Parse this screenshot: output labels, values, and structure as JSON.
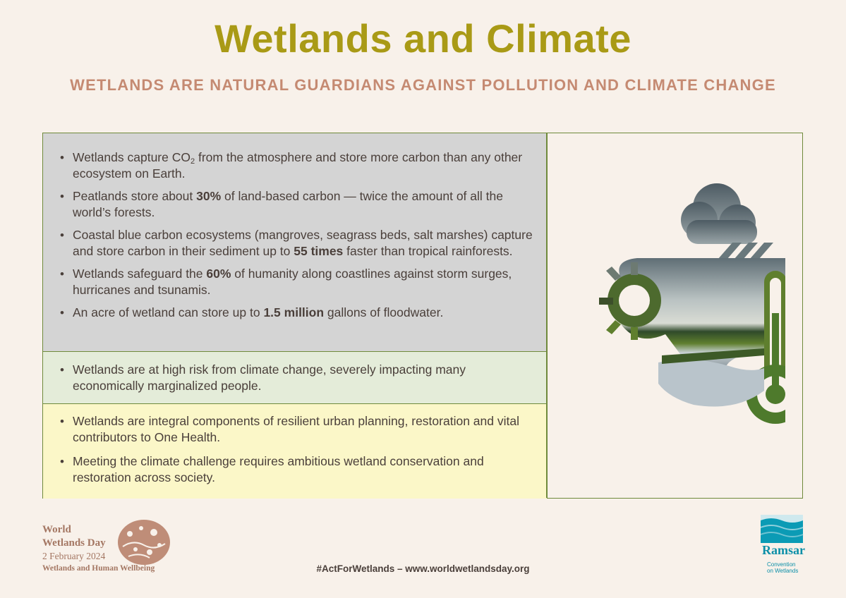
{
  "header": {
    "title": "Wetlands and Climate",
    "subtitle": "WETLANDS ARE NATURAL GUARDIANS AGAINST POLLUTION AND CLIMATE CHANGE"
  },
  "sections": {
    "carbon": [
      {
        "pre": "Wetlands capture CO",
        "sub": "2",
        "post": " from the atmosphere and store more carbon than any other ecosystem on Earth."
      },
      {
        "pre": "Peatlands store about ",
        "bold": "30%",
        "post": " of land-based carbon — twice the amount of all the world’s forests."
      },
      {
        "pre": "Coastal blue carbon ecosystems (mangroves, seagrass beds, salt marshes) capture and store carbon in their sediment up to ",
        "bold": "55 times",
        "post": " faster than tropical rainforests."
      },
      {
        "pre": "Wetlands safeguard the ",
        "bold": "60%",
        "post": " of humanity along coastlines against storm surges, hurricanes and tsunamis."
      },
      {
        "pre": "An acre of wetland can store up to ",
        "bold": "1.5 million",
        "post": " gallons of floodwater."
      }
    ],
    "risk": [
      {
        "pre": "Wetlands are at high risk from climate change, severely impacting many economically marginalized people."
      }
    ],
    "action": [
      {
        "pre": "Wetlands are integral components of resilient urban planning, restoration and vital contributors to One Health."
      },
      {
        "pre": "Meeting the climate challenge requires ambitious wetland conservation and restoration across society."
      }
    ]
  },
  "footer": {
    "hashtag": "#ActForWetlands – www.worldwetlandsday.org",
    "wwd_line1": "World",
    "wwd_line2": "Wetlands Day",
    "wwd_date": "2 February 2024",
    "wwd_theme": "Wetlands and Human Wellbeing",
    "ramsar_name": "Ramsar",
    "ramsar_sub1": "Convention",
    "ramsar_sub2": "on Wetlands"
  },
  "icons": {
    "illustration": "climate-wetland-icon",
    "wwd_emblem": "world-wetlands-day-emblem",
    "ramsar_logo": "ramsar-logo"
  },
  "colors": {
    "title": "#a99a16",
    "subtitle": "#c58a72",
    "gray_section": "#d4d4d4",
    "green_section": "#e4ecd9",
    "yellow_section": "#fbf7c8",
    "border": "#6f8a3b"
  }
}
